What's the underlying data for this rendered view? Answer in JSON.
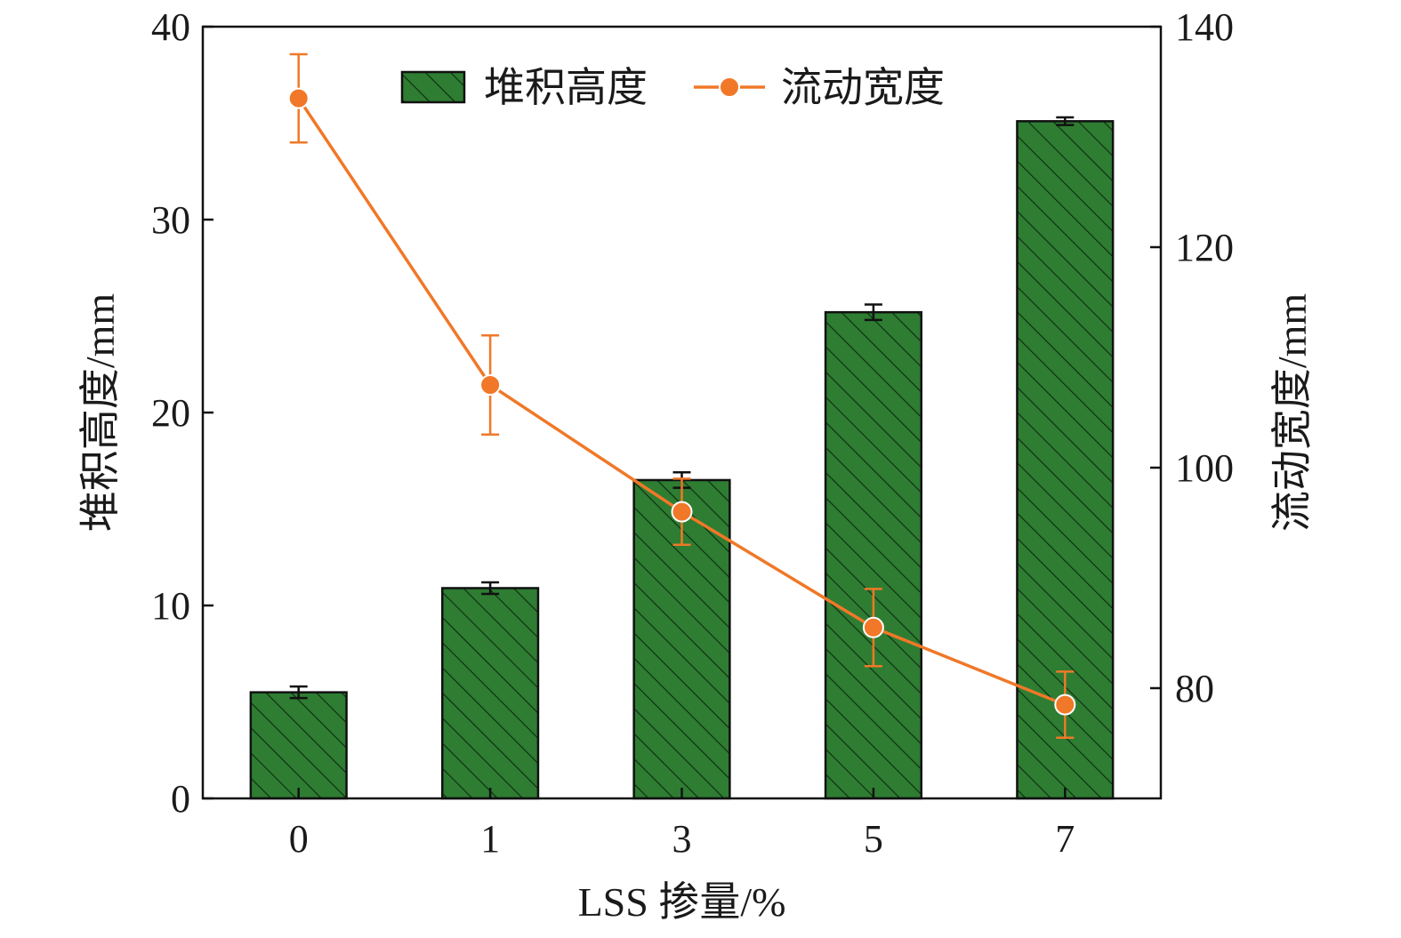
{
  "chart_data": {
    "type": "bar+line",
    "categories": [
      "0",
      "1",
      "3",
      "5",
      "7"
    ],
    "xlabel": "LSS 掺量/%",
    "y_left": {
      "label": "堆积高度/mm",
      "ylim": [
        0,
        40
      ],
      "ticks": [
        "0",
        "10",
        "20",
        "30",
        "40"
      ]
    },
    "y_right": {
      "label": "流动宽度/mm",
      "ylim": [
        70,
        140
      ],
      "ticks": [
        "80",
        "100",
        "120",
        "140"
      ]
    },
    "series": [
      {
        "name": "堆积高度",
        "type": "bar",
        "axis": "left",
        "values": [
          5.5,
          10.9,
          16.5,
          25.2,
          35.1
        ],
        "errors": [
          0.3,
          0.3,
          0.4,
          0.4,
          0.2
        ],
        "color": "#2e7d32",
        "pattern": "diagonal-hatch"
      },
      {
        "name": "流动宽度",
        "type": "line",
        "axis": "right",
        "values": [
          133.5,
          107.5,
          96.0,
          85.5,
          78.5
        ],
        "errors": [
          4.0,
          4.5,
          3.0,
          3.5,
          3.0
        ],
        "color": "#f07828"
      }
    ],
    "legend": {
      "position": "top-center"
    },
    "grid": false
  }
}
